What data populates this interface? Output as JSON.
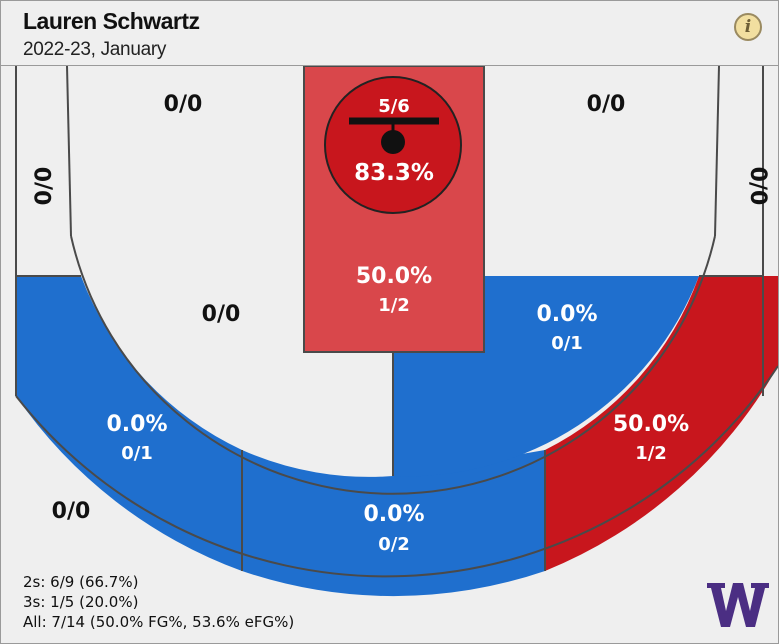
{
  "header": {
    "player_name": "Lauren Schwartz",
    "period": "2022-23, January",
    "info_icon": "i"
  },
  "colors": {
    "hot": "#c8161d",
    "hot_light": "#d9474b",
    "cold": "#1f6fce",
    "neutral": "#efefef",
    "line": "#4a4a4a"
  },
  "zones": {
    "rim": {
      "made_attempts": "5/6",
      "pct": "83.3%",
      "color": "#c8161d"
    },
    "paint": {
      "pct": "50.0%",
      "made_attempts": "1/2",
      "color": "#d9474b"
    },
    "mid_left_corner": {
      "made_attempts": "0/0",
      "color": "#efefef"
    },
    "mid_left_wing": {
      "made_attempts": "0/0",
      "color": "#efefef"
    },
    "mid_right_wing": {
      "made_attempts": "0/0",
      "color": "#efefef"
    },
    "mid_right_corner": {
      "made_attempts": "0/0",
      "color": "#efefef"
    },
    "mid_left_elbow": {
      "made_attempts": "0/0",
      "color": "#efefef"
    },
    "mid_right_elbow": {
      "pct": "0.0%",
      "made_attempts": "0/1",
      "color": "#1f6fce"
    },
    "three_left_wing": {
      "pct": "0.0%",
      "made_attempts": "0/1",
      "color": "#1f6fce"
    },
    "three_top": {
      "pct": "0.0%",
      "made_attempts": "0/2",
      "color": "#1f6fce"
    },
    "three_right_wing": {
      "pct": "50.0%",
      "made_attempts": "1/2",
      "color": "#c8161d"
    },
    "three_left_corner": {
      "made_attempts": "0/0",
      "color": "#efefef"
    }
  },
  "summary": {
    "twos": "2s: 6/9 (66.7%)",
    "threes": "3s: 1/5 (20.0%)",
    "all": "All: 7/14 (50.0% FG%, 53.6% eFG%)"
  },
  "logo_icon": "washington-w-logo"
}
